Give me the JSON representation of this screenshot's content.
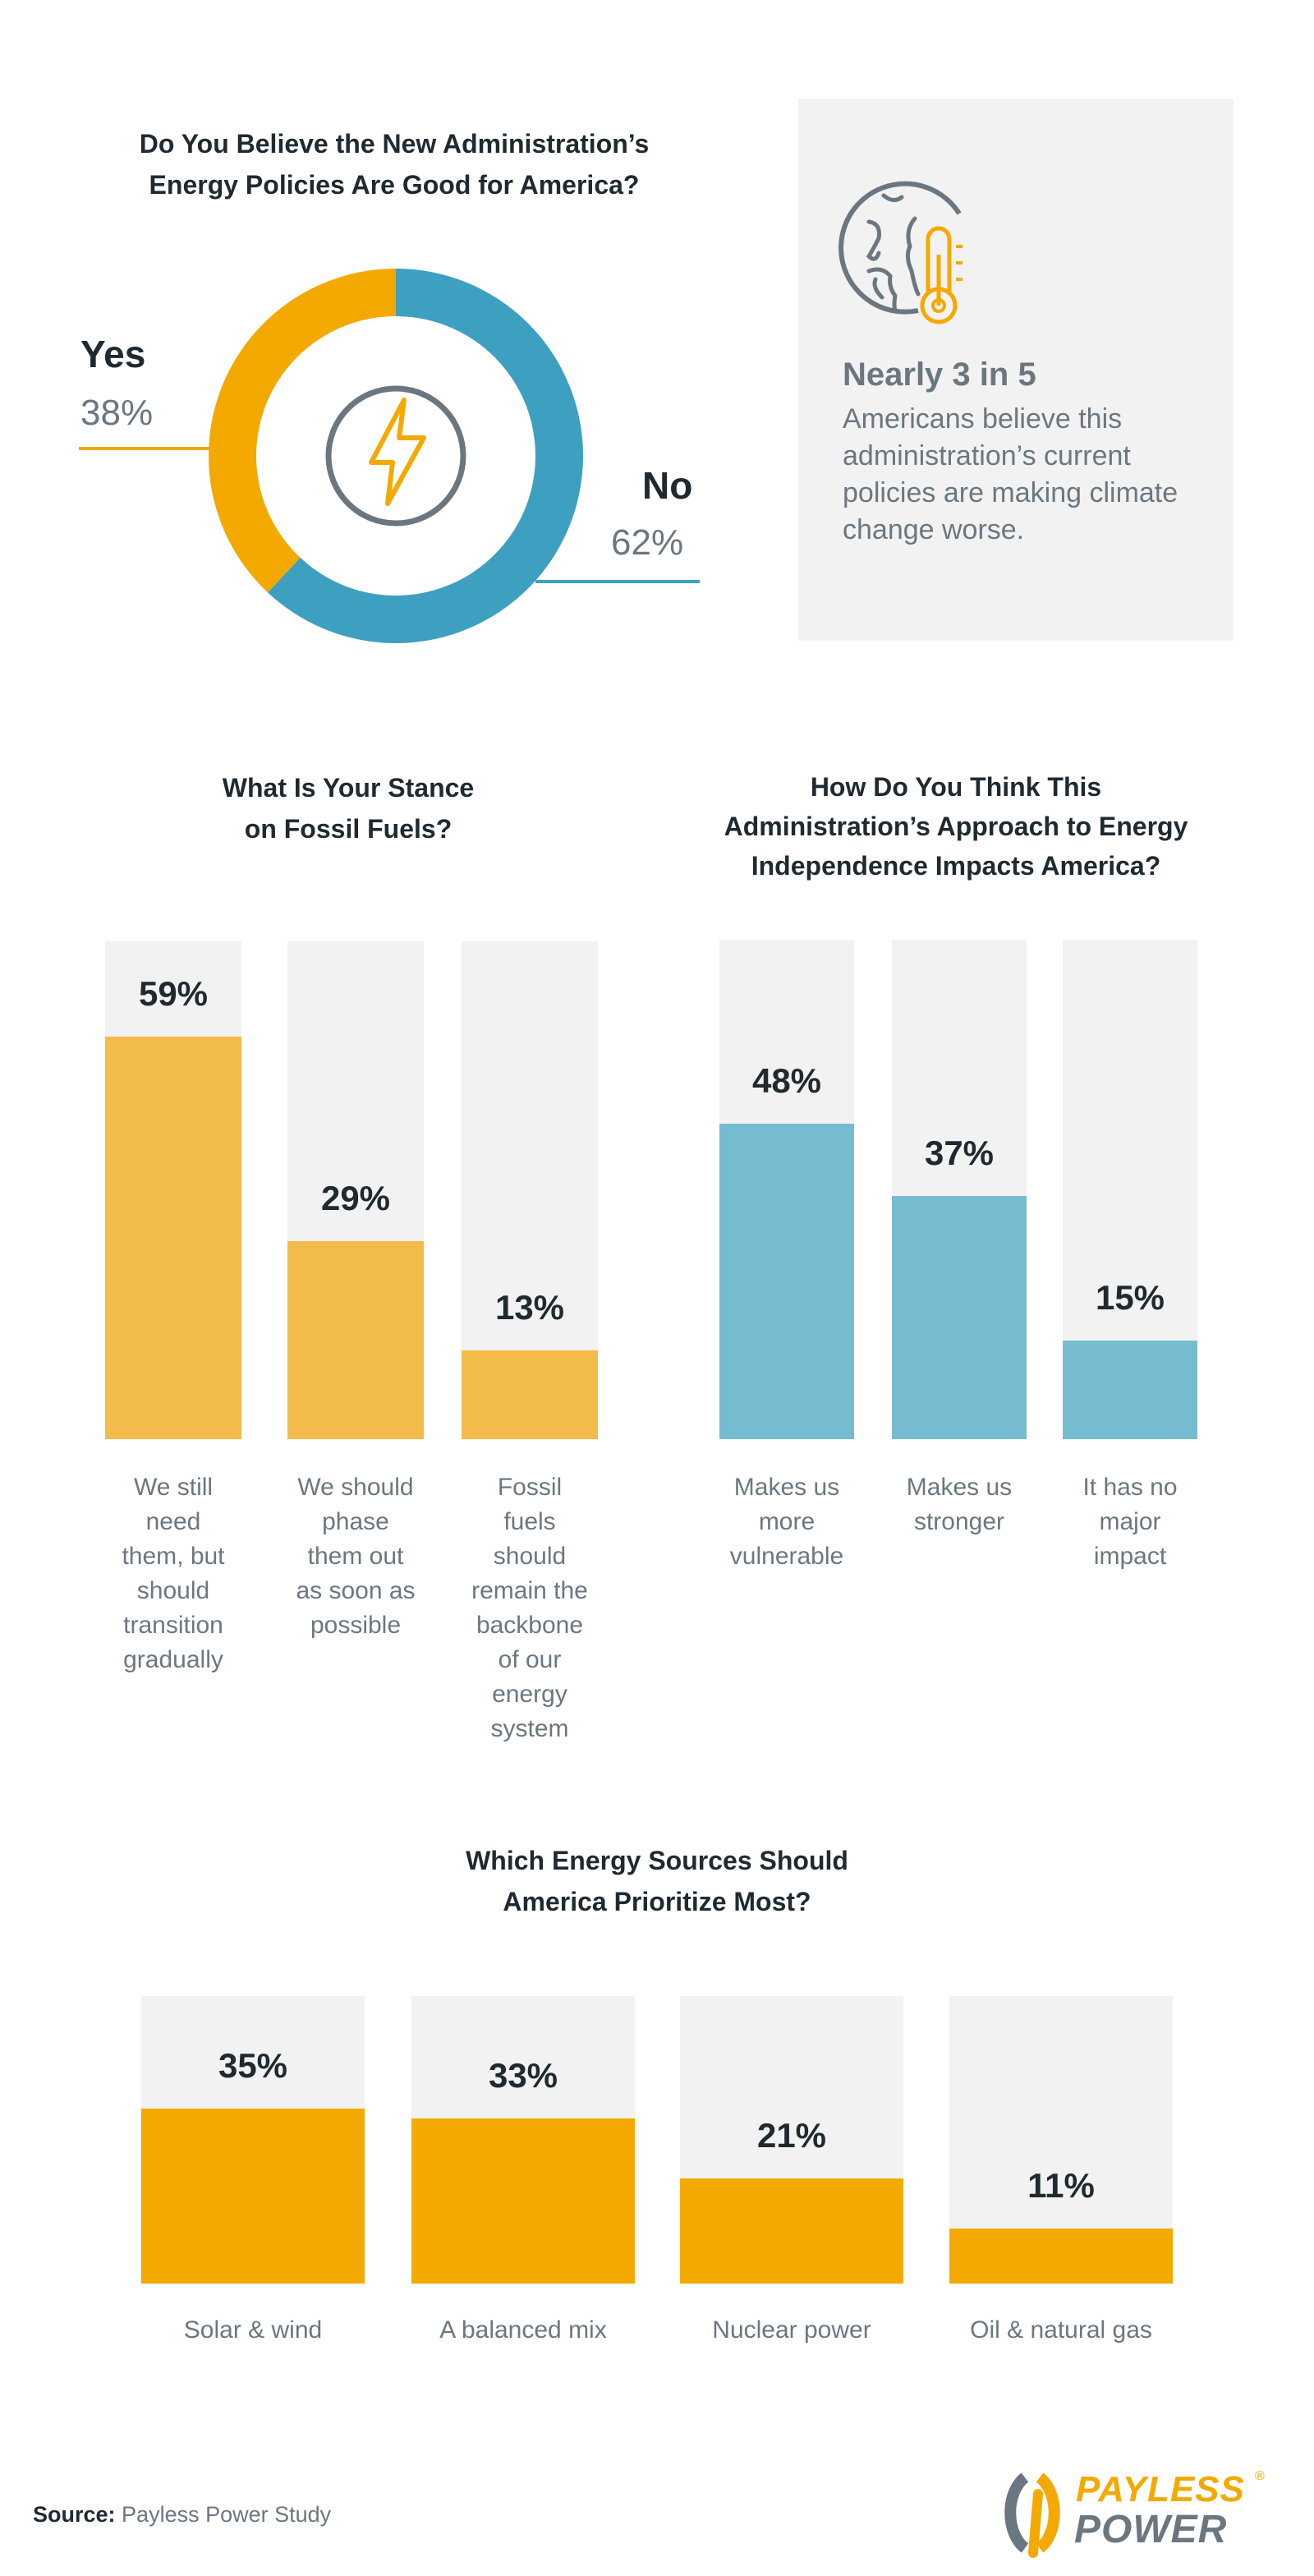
{
  "colors": {
    "yellow": "#f4a900",
    "yellow_light": "#f3bb4a",
    "blue": "#3ea0c0",
    "blue_light": "#75bcd0",
    "track": "#f2f2f2",
    "dark": "#1f2a30",
    "gray": "#6b7780"
  },
  "donut": {
    "title_lines": [
      "Do You Believe the New Administration’s",
      "Energy Policies Are Good for America?"
    ],
    "center_icon": "lightning-bolt-icon",
    "yes": {
      "label": "Yes",
      "value_text": "38%",
      "value": 38
    },
    "no": {
      "label": "No",
      "value_text": "62%",
      "value": 62
    }
  },
  "callout": {
    "icon": "globe-thermometer-icon",
    "headline": "Nearly 3 in 5",
    "body": "Americans believe this administration’s current policies are making climate change worse."
  },
  "chart_data": [
    {
      "type": "pie",
      "title": "Do You Believe the New Administration’s Energy Policies Are Good for America?",
      "categories": [
        "Yes",
        "No"
      ],
      "values": [
        38,
        62
      ]
    },
    {
      "type": "bar",
      "title_lines": [
        "What Is Your Stance",
        "on Fossil Fuels?"
      ],
      "categories": [
        [
          "We still",
          "need",
          "them, but",
          "should",
          "transition",
          "gradually"
        ],
        [
          "We should",
          "phase",
          "them out",
          "as soon as",
          "possible"
        ],
        [
          "Fossil",
          "fuels",
          "should",
          "remain the",
          "backbone",
          "of our",
          "energy",
          "system"
        ]
      ],
      "values": [
        59,
        29,
        13
      ],
      "labels": [
        "59%",
        "29%",
        "13%"
      ]
    },
    {
      "type": "bar",
      "title_lines": [
        "How Do You Think This",
        "Administration’s Approach to Energy",
        "Independence Impacts America?"
      ],
      "categories": [
        [
          "Makes us",
          "more",
          "vulnerable"
        ],
        [
          "Makes us",
          "stronger"
        ],
        [
          "It has no",
          "major",
          "impact"
        ]
      ],
      "values": [
        48,
        37,
        15
      ],
      "labels": [
        "48%",
        "37%",
        "15%"
      ]
    },
    {
      "type": "bar",
      "title_lines": [
        "Which Energy Sources Should",
        "America Prioritize Most?"
      ],
      "categories": [
        [
          "Solar & wind"
        ],
        [
          "A balanced mix"
        ],
        [
          "Nuclear power"
        ],
        [
          "Oil & natural gas"
        ]
      ],
      "values": [
        35,
        33,
        21,
        11
      ],
      "labels": [
        "35%",
        "33%",
        "21%",
        "11%"
      ]
    }
  ],
  "footer": {
    "source_label": "Source:",
    "source_text": "Payless Power Study",
    "logo_text": [
      "PAYLESS",
      "POWER"
    ],
    "logo_mark": "®"
  }
}
